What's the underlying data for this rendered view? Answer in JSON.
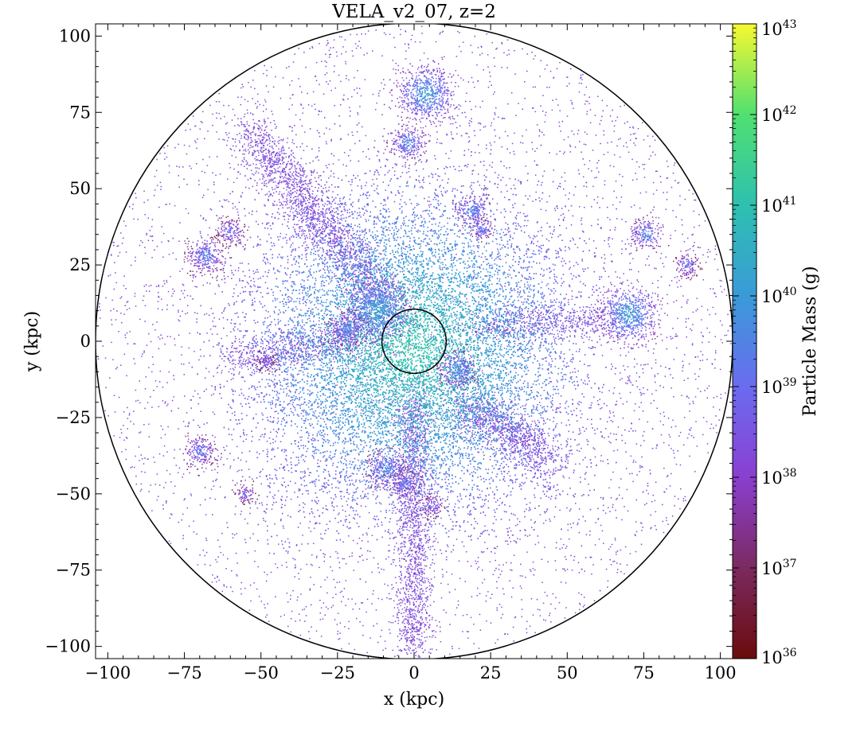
{
  "chart_data": {
    "type": "scatter",
    "title": "VELA_v2_07, z=2",
    "xlabel": "x  (kpc)",
    "ylabel": "y  (kpc)",
    "xlim": [
      -104,
      104
    ],
    "ylim": [
      -104,
      104
    ],
    "x_ticks": [
      -100,
      -75,
      -50,
      -25,
      0,
      25,
      50,
      75,
      100
    ],
    "y_ticks": [
      -100,
      -75,
      -50,
      -25,
      0,
      25,
      50,
      75,
      100
    ],
    "x_tick_labels": [
      "−100",
      "−75",
      "−50",
      "−25",
      "0",
      "25",
      "50",
      "75",
      "100"
    ],
    "y_tick_labels": [
      "−100",
      "−75",
      "−50",
      "−25",
      "0",
      "25",
      "50",
      "75",
      "100"
    ],
    "grid": false,
    "colormap": "viridis-like (dark red → purple → blue → teal → green → yellow)",
    "colorbar": {
      "label": "Particle Mass  (g)",
      "scale": "log",
      "range": [
        36,
        43
      ],
      "tick_exponents": [
        36,
        37,
        38,
        39,
        40,
        41,
        42,
        43
      ],
      "tick_base": "10",
      "colors": [
        "#6a0c0c",
        "#7b2a60",
        "#8a3fd0",
        "#6a6cf0",
        "#3a9ad8",
        "#2ec0b0",
        "#50e070",
        "#f8f830"
      ]
    },
    "circles": [
      {
        "name": "outer",
        "center": [
          0,
          0
        ],
        "radius": 104
      },
      {
        "name": "inner",
        "center": [
          0,
          0
        ],
        "radius": 10.5
      }
    ],
    "clumps": [
      {
        "x": 0,
        "y": -3,
        "r": 26,
        "peak": 41.2
      },
      {
        "x": -12,
        "y": 10,
        "r": 5,
        "peak": 40.2
      },
      {
        "x": -22,
        "y": 4,
        "r": 3,
        "peak": 39.6
      },
      {
        "x": 14,
        "y": -9,
        "r": 3,
        "peak": 39.8
      },
      {
        "x": 4,
        "y": 81,
        "r": 4.5,
        "peak": 40.2
      },
      {
        "x": -2,
        "y": 65,
        "r": 2.8,
        "peak": 39.8
      },
      {
        "x": 19,
        "y": 43,
        "r": 2.5,
        "peak": 39.8
      },
      {
        "x": 22,
        "y": 37,
        "r": 1.8,
        "peak": 39.5
      },
      {
        "x": 70,
        "y": 9,
        "r": 4.5,
        "peak": 40.3
      },
      {
        "x": 76,
        "y": 35,
        "r": 2.5,
        "peak": 39.8
      },
      {
        "x": 89,
        "y": 25,
        "r": 2,
        "peak": 39.4
      },
      {
        "x": -68,
        "y": 28,
        "r": 3,
        "peak": 39.6
      },
      {
        "x": -60,
        "y": 36,
        "r": 2.2,
        "peak": 39.3
      },
      {
        "x": -70,
        "y": -36,
        "r": 2.5,
        "peak": 39.5
      },
      {
        "x": -9,
        "y": -42,
        "r": 3,
        "peak": 39.8
      },
      {
        "x": -3,
        "y": -47,
        "r": 2.2,
        "peak": 39.6
      },
      {
        "x": 6,
        "y": -54,
        "r": 1.8,
        "peak": 39.2
      },
      {
        "x": -55,
        "y": -50,
        "r": 1.6,
        "peak": 39.1
      },
      {
        "x": -48,
        "y": -7,
        "r": 1.6,
        "peak": 38.9
      }
    ]
  }
}
